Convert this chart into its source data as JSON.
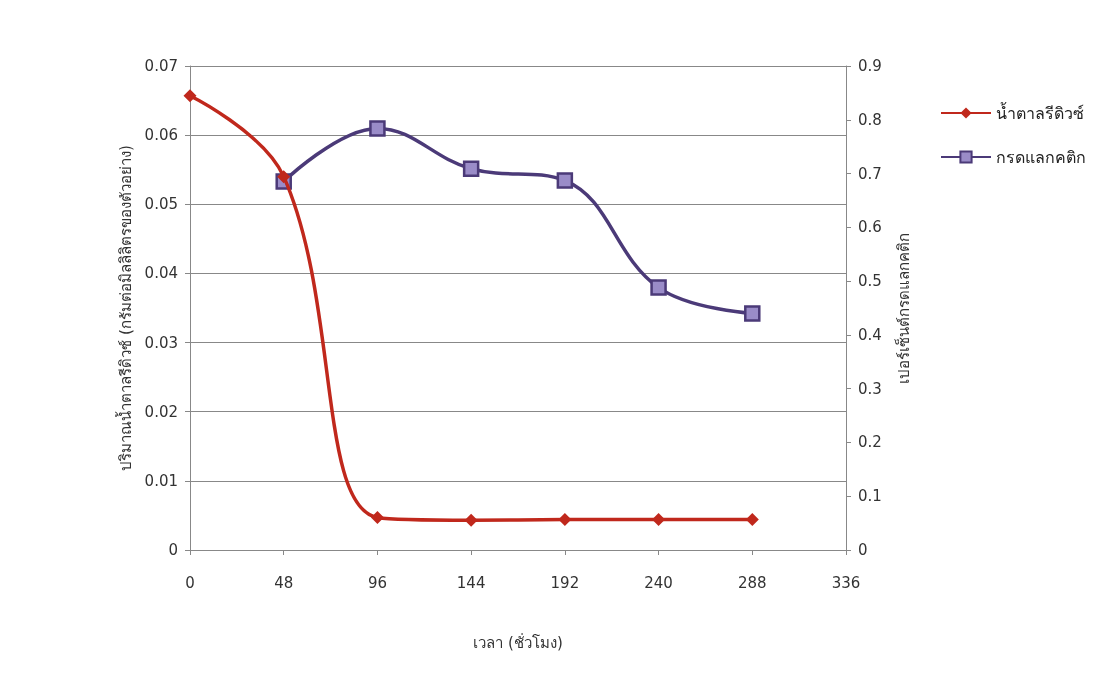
{
  "chart_data": {
    "type": "line",
    "xlabel": "เวลา (ชั่วโมง)",
    "ylabel": "ปริมาณน้ำตาลรีดิวซ์ (กรัมต่อมิลลิลิตรของตัวอย่าง)",
    "y2label": "เปอร์เซ็นต์กรดแลกคติก",
    "x": [
      0,
      48,
      96,
      144,
      192,
      240,
      288
    ],
    "series": [
      {
        "name": "น้ำตาลรีดิวซ์",
        "color": "#c0281c",
        "marker": "diamond",
        "values": [
          0.0657,
          0.054,
          0.0047,
          0.0043,
          0.0044,
          0.0044,
          0.0044
        ]
      },
      {
        "name": "กรดแลกคติก",
        "color": "#4b3a78",
        "marker": "square",
        "axis": "y2",
        "values": [
          null,
          0.685,
          0.784,
          0.709,
          0.687,
          0.488,
          0.44
        ]
      }
    ],
    "xlim": [
      0,
      336
    ],
    "xticks": [
      0,
      48,
      96,
      144,
      192,
      240,
      288,
      336
    ],
    "ylim": [
      0,
      0.07
    ],
    "yticks": [
      0,
      0.01,
      0.02,
      0.03,
      0.04,
      0.05,
      0.06,
      0.07
    ],
    "y2lim": [
      0,
      0.9
    ],
    "y2ticks": [
      0,
      0.1,
      0.2,
      0.3,
      0.4,
      0.5,
      0.6,
      0.7,
      0.8,
      0.9
    ],
    "grid": "y",
    "legend": "right"
  }
}
